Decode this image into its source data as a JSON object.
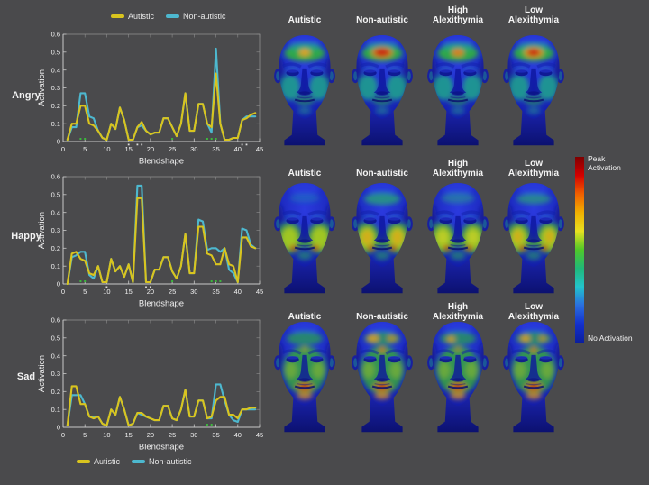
{
  "figure": {
    "background": "#4a4a4c",
    "text_color": "#f2f2f2"
  },
  "legend": {
    "items": [
      {
        "label": "Autistic",
        "color": "#d9c41e"
      },
      {
        "label": "Non-autistic",
        "color": "#4db8cf"
      }
    ]
  },
  "rows": [
    {
      "emotion": "Angry"
    },
    {
      "emotion": "Happy"
    },
    {
      "emotion": "Sad"
    }
  ],
  "face_columns": [
    {
      "lines": [
        "Autistic"
      ]
    },
    {
      "lines": [
        "Non-autistic"
      ]
    },
    {
      "lines": [
        "High",
        "Alexithymia"
      ]
    },
    {
      "lines": [
        "Low",
        "Alexithymia"
      ]
    }
  ],
  "colorbar": {
    "top_label": "Peak Activation",
    "bottom_label": "No Activation",
    "colors_top_to_bottom": [
      "#7f0000",
      "#d40000",
      "#f06000",
      "#f0b000",
      "#e8e020",
      "#50c828",
      "#20b878",
      "#22c4cc",
      "#2a6ee0",
      "#1330cc",
      "#0b1f9e"
    ]
  },
  "chart_data": [
    {
      "type": "line",
      "emotion": "Angry",
      "xlabel": "Blendshape",
      "ylabel": "Activation",
      "xlim": [
        0,
        45
      ],
      "ylim": [
        0,
        0.6
      ],
      "xticks": [
        0,
        5,
        10,
        15,
        20,
        25,
        30,
        35,
        40,
        45
      ],
      "yticks": [
        0,
        0.1,
        0.2,
        0.3,
        0.4,
        0.5,
        0.6
      ],
      "x_first": 1,
      "x_step": 1,
      "series": [
        {
          "name": "Autistic",
          "color": "#d9c41e",
          "values": [
            0.01,
            0.1,
            0.1,
            0.2,
            0.2,
            0.1,
            0.09,
            0.06,
            0.02,
            0.01,
            0.1,
            0.07,
            0.19,
            0.12,
            0.01,
            0.01,
            0.08,
            0.11,
            0.06,
            0.04,
            0.05,
            0.05,
            0.13,
            0.13,
            0.08,
            0.03,
            0.1,
            0.27,
            0.06,
            0.06,
            0.21,
            0.21,
            0.1,
            0.08,
            0.38,
            0.1,
            0.01,
            0.01,
            0.02,
            0.02,
            0.12,
            0.13,
            0.15,
            0.16
          ]
        },
        {
          "name": "Non-autistic",
          "color": "#4db8cf",
          "values": [
            0.01,
            0.08,
            0.08,
            0.27,
            0.27,
            0.14,
            0.13,
            0.06,
            0.02,
            0.01,
            0.1,
            0.07,
            0.19,
            0.12,
            0.01,
            0.01,
            0.08,
            0.09,
            0.06,
            0.04,
            0.05,
            0.05,
            0.13,
            0.13,
            0.08,
            0.03,
            0.1,
            0.27,
            0.06,
            0.06,
            0.21,
            0.21,
            0.1,
            0.05,
            0.52,
            0.1,
            0.01,
            0.01,
            0.02,
            0.02,
            0.12,
            0.14,
            0.14,
            0.14
          ]
        }
      ],
      "sig_markers": {
        "green": [
          4,
          5,
          25,
          33,
          34,
          35
        ],
        "white": [
          15,
          17,
          18,
          41,
          42
        ]
      }
    },
    {
      "type": "line",
      "emotion": "Happy",
      "xlabel": "Blendshape",
      "ylabel": "Activation",
      "xlim": [
        0,
        45
      ],
      "ylim": [
        0,
        0.6
      ],
      "xticks": [
        0,
        5,
        10,
        15,
        20,
        25,
        30,
        35,
        40,
        45
      ],
      "yticks": [
        0,
        0.1,
        0.2,
        0.3,
        0.4,
        0.5,
        0.6
      ],
      "x_first": 1,
      "x_step": 1,
      "series": [
        {
          "name": "Autistic",
          "color": "#d9c41e",
          "values": [
            0.0,
            0.17,
            0.18,
            0.14,
            0.13,
            0.06,
            0.05,
            0.1,
            0.01,
            0.01,
            0.14,
            0.07,
            0.1,
            0.04,
            0.11,
            0.01,
            0.48,
            0.48,
            0.01,
            0.01,
            0.08,
            0.08,
            0.15,
            0.15,
            0.07,
            0.03,
            0.1,
            0.28,
            0.06,
            0.06,
            0.32,
            0.32,
            0.17,
            0.16,
            0.11,
            0.11,
            0.2,
            0.11,
            0.1,
            0.01,
            0.26,
            0.26,
            0.21,
            0.2
          ]
        },
        {
          "name": "Non-autistic",
          "color": "#4db8cf",
          "values": [
            0.0,
            0.15,
            0.16,
            0.18,
            0.18,
            0.05,
            0.03,
            0.1,
            0.01,
            0.01,
            0.14,
            0.07,
            0.1,
            0.04,
            0.11,
            0.01,
            0.55,
            0.55,
            0.01,
            0.01,
            0.08,
            0.08,
            0.15,
            0.15,
            0.07,
            0.03,
            0.1,
            0.28,
            0.06,
            0.06,
            0.36,
            0.35,
            0.19,
            0.2,
            0.2,
            0.18,
            0.2,
            0.08,
            0.06,
            0.01,
            0.31,
            0.3,
            0.22,
            0.2
          ]
        }
      ],
      "sig_markers": {
        "green": [
          4,
          5,
          25,
          34,
          35,
          36
        ],
        "white": [
          10,
          19,
          20
        ]
      }
    },
    {
      "type": "line",
      "emotion": "Sad",
      "xlabel": "Blendshape",
      "ylabel": "Activation",
      "xlim": [
        0,
        45
      ],
      "ylim": [
        0,
        0.6
      ],
      "xticks": [
        0,
        5,
        10,
        15,
        20,
        25,
        30,
        35,
        40,
        45
      ],
      "yticks": [
        0,
        0.1,
        0.2,
        0.3,
        0.4,
        0.5,
        0.6
      ],
      "x_first": 1,
      "x_step": 1,
      "series": [
        {
          "name": "Autistic",
          "color": "#d9c41e",
          "values": [
            0.01,
            0.23,
            0.23,
            0.13,
            0.13,
            0.06,
            0.05,
            0.06,
            0.02,
            0.01,
            0.1,
            0.07,
            0.17,
            0.1,
            0.01,
            0.02,
            0.08,
            0.08,
            0.06,
            0.05,
            0.04,
            0.04,
            0.12,
            0.12,
            0.05,
            0.04,
            0.1,
            0.21,
            0.06,
            0.06,
            0.15,
            0.15,
            0.05,
            0.06,
            0.15,
            0.17,
            0.17,
            0.07,
            0.07,
            0.05,
            0.1,
            0.1,
            0.11,
            0.11
          ]
        },
        {
          "name": "Non-autistic",
          "color": "#4db8cf",
          "values": [
            0.01,
            0.18,
            0.18,
            0.18,
            0.13,
            0.06,
            0.06,
            0.06,
            0.02,
            0.01,
            0.1,
            0.07,
            0.17,
            0.1,
            0.01,
            0.02,
            0.08,
            0.07,
            0.06,
            0.05,
            0.04,
            0.04,
            0.12,
            0.12,
            0.05,
            0.04,
            0.1,
            0.21,
            0.06,
            0.06,
            0.15,
            0.15,
            0.05,
            0.05,
            0.24,
            0.24,
            0.15,
            0.07,
            0.04,
            0.03,
            0.1,
            0.1,
            0.1,
            0.1
          ]
        }
      ],
      "sig_markers": {
        "green": [
          33,
          34
        ],
        "white": []
      }
    }
  ]
}
